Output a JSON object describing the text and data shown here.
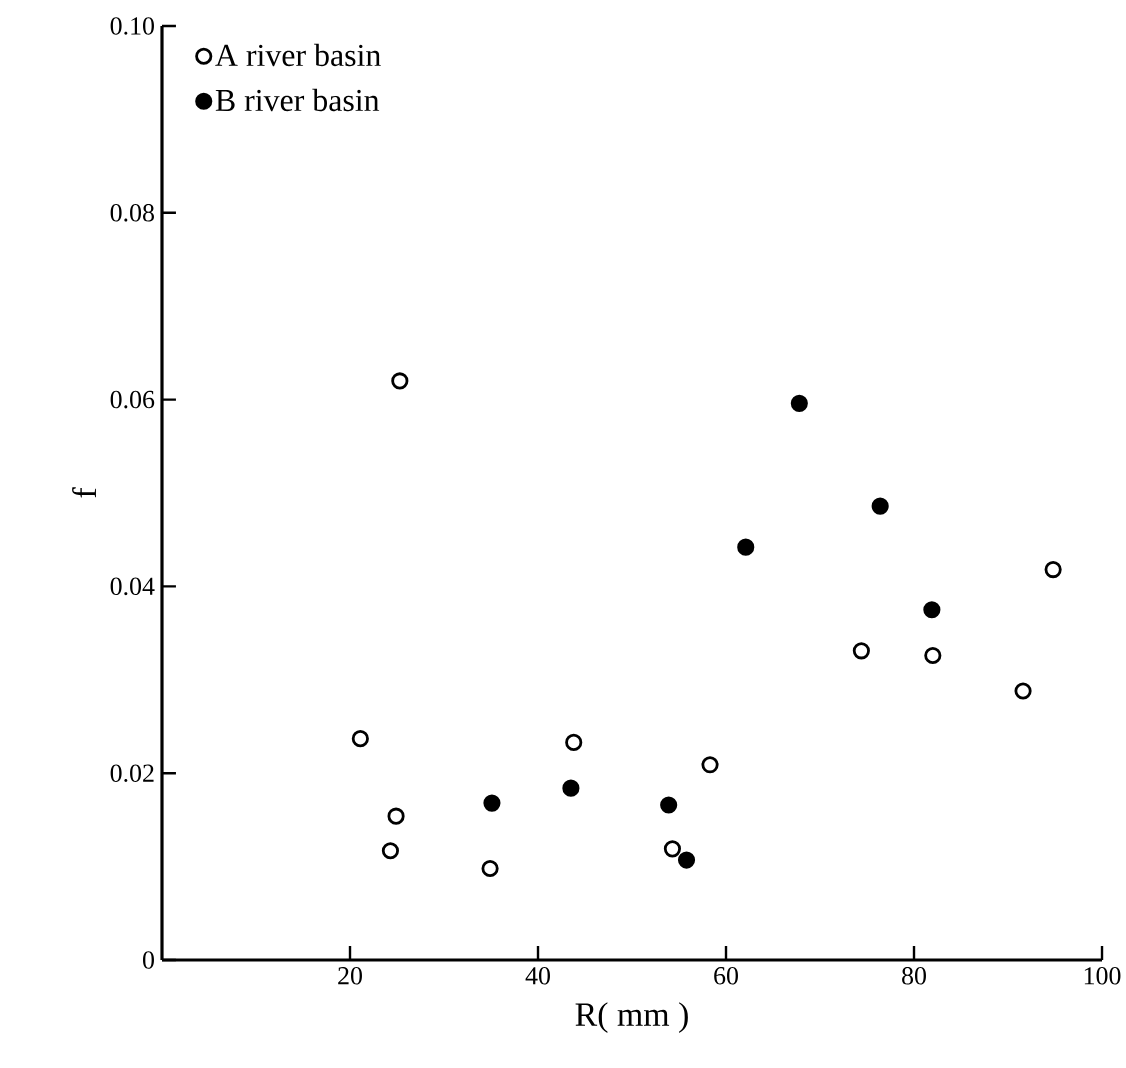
{
  "chart_data": {
    "type": "scatter",
    "xlabel": "R( mm )",
    "ylabel": "f",
    "xlim": [
      0,
      100
    ],
    "ylim": [
      0,
      0.1
    ],
    "xticks": [
      20,
      40,
      60,
      80,
      100
    ],
    "yticks": [
      0,
      0.02,
      0.04,
      0.06,
      0.08,
      {
        "value": 0.1,
        "label": "0.10"
      }
    ],
    "grid": false,
    "legend": "top left",
    "marker": "circle",
    "series": [
      {
        "name": "A river basin",
        "color": "#ffffff",
        "x": [
          21.1,
          25.3,
          24.9,
          24.3,
          34.9,
          43.8,
          58.3,
          54.3,
          74.4,
          82.0,
          91.6,
          94.8
        ],
        "values": [
          0.0237,
          0.062,
          0.0154,
          0.0117,
          0.0098,
          0.0233,
          0.0209,
          0.0119,
          0.0331,
          0.0326,
          0.0288,
          0.0418
        ]
      },
      {
        "name": "B river basin",
        "color": "#000000",
        "x": [
          35.1,
          43.5,
          53.9,
          55.8,
          62.1,
          67.8,
          76.4,
          81.9
        ],
        "values": [
          0.0168,
          0.0184,
          0.0166,
          0.0107,
          0.0442,
          0.0596,
          0.0486,
          0.0375
        ]
      }
    ]
  }
}
